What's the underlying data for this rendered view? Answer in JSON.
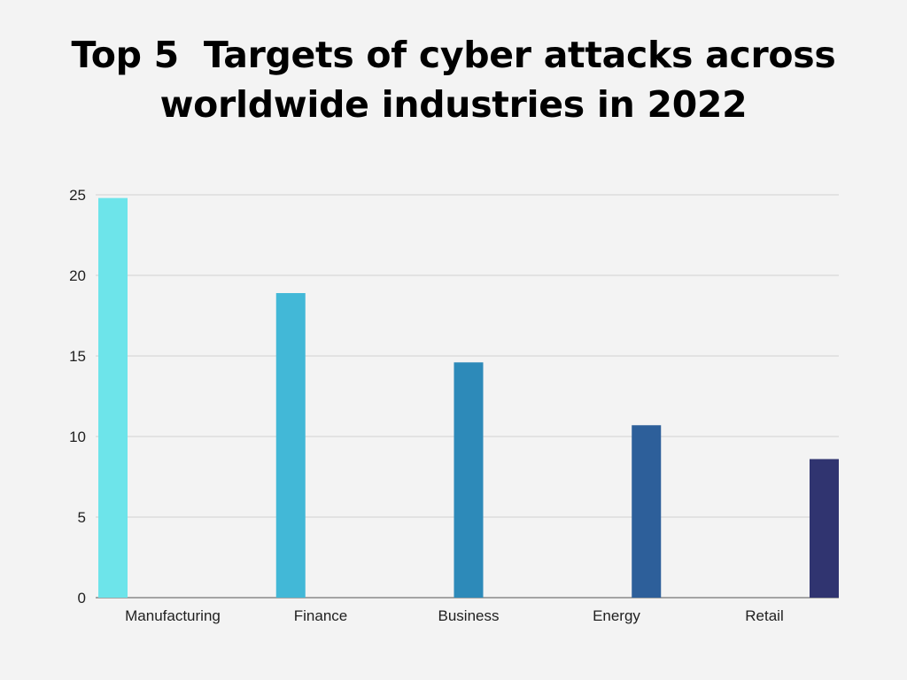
{
  "title_lines": [
    "Top 5  Targets of cyber attacks across",
    "worldwide industries in 2022"
  ],
  "chart_data": {
    "type": "bar",
    "title": "Top 5  Targets of cyber attacks across worldwide industries in 2022",
    "categories": [
      "Manufacturing",
      "Finance",
      "Business",
      "Energy",
      "Retail"
    ],
    "values": [
      24.8,
      18.9,
      14.6,
      10.7,
      8.6
    ],
    "colors": [
      "#6de4ea",
      "#42b8d7",
      "#2d8ab9",
      "#2d5f9a",
      "#303470"
    ],
    "xlabel": "",
    "ylabel": "",
    "ylim": [
      0,
      25
    ],
    "yticks": [
      0,
      5,
      10,
      15,
      20,
      25
    ],
    "grid": true,
    "gridline_color": "#d2d2d2",
    "axis_color": "#8a8a8a",
    "legend": "none"
  }
}
